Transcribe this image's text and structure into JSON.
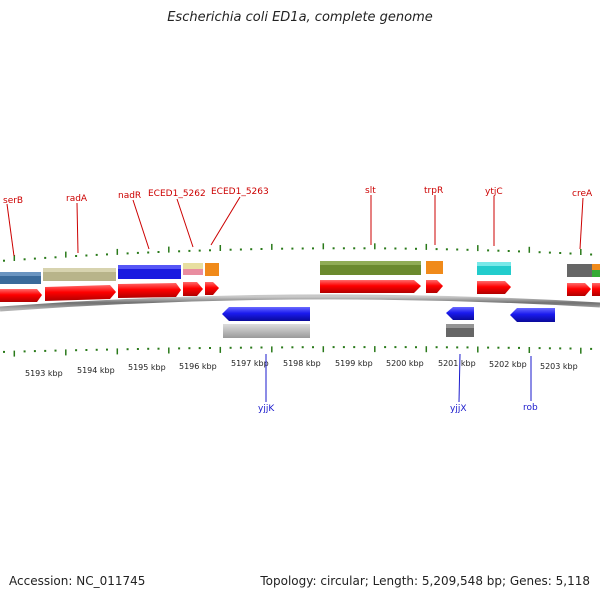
{
  "title": "Escherichia coli ED1a, complete genome",
  "footer": {
    "accession": "Accession: NC_011745",
    "stats": "Topology: circular; Length: 5,209,548 bp; Genes: 5,118"
  },
  "colors": {
    "label_top": "#cc0000",
    "label_bottom": "#1a1acc",
    "tick": "#2a7a1a",
    "backbone": "#808080",
    "cds": "#ff0000"
  },
  "scale": {
    "ticks": [
      "5193 kbp",
      "5194 kbp",
      "5195 kbp",
      "5196 kbp",
      "5197 kbp",
      "5198 kbp",
      "5199 kbp",
      "5200 kbp",
      "5201 kbp",
      "5202 kbp",
      "5203 kbp"
    ]
  },
  "genes_top": [
    {
      "label": "serB"
    },
    {
      "label": "radA"
    },
    {
      "label": "nadR"
    },
    {
      "label": "ECED1_5262"
    },
    {
      "label": "ECED1_5263"
    },
    {
      "label": "slt"
    },
    {
      "label": "trpR"
    },
    {
      "label": "ytjC"
    },
    {
      "label": "creA"
    }
  ],
  "genes_bottom": [
    {
      "label": "yjjK"
    },
    {
      "label": "yjjX"
    },
    {
      "label": "rob"
    }
  ]
}
